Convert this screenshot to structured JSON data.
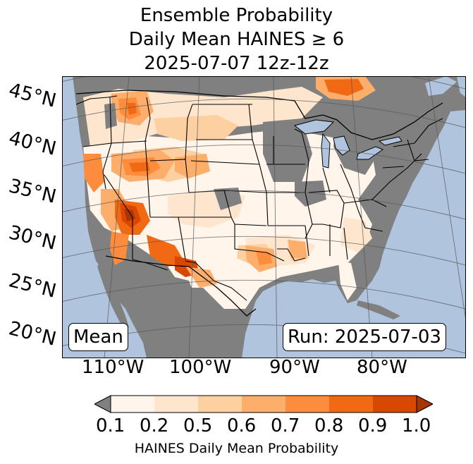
{
  "title": {
    "line1": "Ensemble Probability",
    "line2": "Daily Mean HAINES ≥ 6",
    "line3": "2025-07-07 12z-12z"
  },
  "lat_labels": [
    "45°N",
    "40°N",
    "35°N",
    "30°N",
    "25°N",
    "20°N"
  ],
  "lon_labels": [
    "110°W",
    "100°W",
    "90°W",
    "80°W"
  ],
  "stat_label": "Mean",
  "run_label": "Run: 2025-07-03",
  "colorbar": {
    "ticks": [
      "0.1",
      "0.2",
      "0.5",
      "0.6",
      "0.7",
      "0.8",
      "0.9",
      "1.0"
    ],
    "colors": [
      "#fff5eb",
      "#fee6ce",
      "#fdd0a2",
      "#fdae6b",
      "#fd8d3c",
      "#f16913",
      "#d94801",
      "#a63603"
    ],
    "under_color": "#808080",
    "label": "HAINES Daily Mean Probability"
  },
  "map_colors": {
    "ocean": "#b0c4de",
    "land_zero": "#808080",
    "border": "#000000",
    "gridline": "#555555"
  }
}
